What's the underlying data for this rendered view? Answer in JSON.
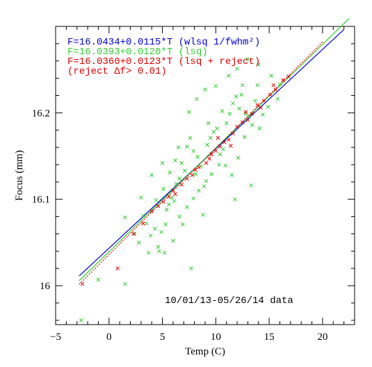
{
  "chart_data": {
    "type": "scatter",
    "xlabel": "Temp (C)",
    "ylabel": "Focus (mm)",
    "xlim": [
      -5,
      23
    ],
    "ylim": [
      15.955,
      16.3
    ],
    "xticks": [
      -5,
      0,
      5,
      10,
      15,
      20
    ],
    "yticks": [
      16,
      16.1,
      16.2
    ],
    "ytick_labels": [
      "16",
      "16.1",
      "16.2"
    ],
    "grid": false,
    "legend": {
      "placement": "top-left",
      "entries": [
        {
          "text": "F=16.0434+0.0115*T (wlsq 1/fwhm²)",
          "color": "#0000cc"
        },
        {
          "text": "F=16.0393+0.0120*T (lsq)",
          "color": "#33cc33"
        },
        {
          "text": "F=16.0360+0.0123*T (lsq + reject)",
          "color": "#dd0000"
        },
        {
          "text": "(reject Δf> 0.01)",
          "color": "#dd0000"
        }
      ]
    },
    "annotation": "10/01/13-05/26/14 data",
    "fits": [
      {
        "intercept": 16.0434,
        "slope": 0.0115,
        "color": "#0000cc",
        "style": "solid",
        "x": [
          -2.8,
          22
        ]
      },
      {
        "intercept": 16.0393,
        "slope": 0.012,
        "color": "#33cc33",
        "style": "solid",
        "x": [
          -2.8,
          22.5
        ]
      },
      {
        "intercept": 16.036,
        "slope": 0.0123,
        "color": "#dd0000",
        "style": "dotted",
        "x": [
          -2.8,
          20
        ]
      }
    ],
    "series": [
      {
        "color": "#33cc33",
        "marker": "x",
        "points": [
          [
            -2.6,
            15.96
          ],
          [
            1.5,
            16.002
          ],
          [
            -1.0,
            16.007
          ],
          [
            1.5,
            16.079
          ],
          [
            2.4,
            16.06
          ],
          [
            3.2,
            16.081
          ],
          [
            3.5,
            16.072
          ],
          [
            3.9,
            16.058
          ],
          [
            4.3,
            16.066
          ],
          [
            4.6,
            16.045
          ],
          [
            4.9,
            16.062
          ],
          [
            5.1,
            16.112
          ],
          [
            5.4,
            16.088
          ],
          [
            5.6,
            16.094
          ],
          [
            5.9,
            16.102
          ],
          [
            6.1,
            16.098
          ],
          [
            6.0,
            16.052
          ],
          [
            6.3,
            16.118
          ],
          [
            6.6,
            16.124
          ],
          [
            6.8,
            16.142
          ],
          [
            7.1,
            16.133
          ],
          [
            7.3,
            16.161
          ],
          [
            7.6,
            16.171
          ],
          [
            7.9,
            16.156
          ],
          [
            8.1,
            16.129
          ],
          [
            8.3,
            16.149
          ],
          [
            8.6,
            16.138
          ],
          [
            8.9,
            16.115
          ],
          [
            9.2,
            16.163
          ],
          [
            9.5,
            16.171
          ],
          [
            9.8,
            16.178
          ],
          [
            10.1,
            16.182
          ],
          [
            10.4,
            16.152
          ],
          [
            10.7,
            16.158
          ],
          [
            11.0,
            16.188
          ],
          [
            11.3,
            16.199
          ],
          [
            11.6,
            16.211
          ],
          [
            11.9,
            16.219
          ],
          [
            12.2,
            16.205
          ],
          [
            12.5,
            16.232
          ],
          [
            12.8,
            16.199
          ],
          [
            13.1,
            16.196
          ],
          [
            13.4,
            16.186
          ],
          [
            13.7,
            16.214
          ],
          [
            14.1,
            16.182
          ],
          [
            14.4,
            16.198
          ],
          [
            14.9,
            16.207
          ],
          [
            5.2,
            16.038
          ],
          [
            4.7,
            16.04
          ],
          [
            5.3,
            16.071
          ],
          [
            6.6,
            16.08
          ],
          [
            7.3,
            16.091
          ],
          [
            7.9,
            16.101
          ],
          [
            8.4,
            16.11
          ],
          [
            9.1,
            16.121
          ],
          [
            9.6,
            16.129
          ],
          [
            10.3,
            16.14
          ],
          [
            10.9,
            16.139
          ],
          [
            11.5,
            16.128
          ],
          [
            12.1,
            16.148
          ],
          [
            12.7,
            16.172
          ],
          [
            3.0,
            16.102
          ],
          [
            4.0,
            16.128
          ],
          [
            5.0,
            16.142
          ],
          [
            6.5,
            16.16
          ],
          [
            7.5,
            16.201
          ],
          [
            8.2,
            16.216
          ],
          [
            9.0,
            16.227
          ],
          [
            10.0,
            16.231
          ],
          [
            11.2,
            16.243
          ],
          [
            12.0,
            16.251
          ],
          [
            13.0,
            16.262
          ],
          [
            14.0,
            16.256
          ],
          [
            15.2,
            16.243
          ],
          [
            16.0,
            16.233
          ],
          [
            7.7,
            16.02
          ],
          [
            8.8,
            16.082
          ],
          [
            6.9,
            16.071
          ],
          [
            11.8,
            16.1
          ],
          [
            13.3,
            16.116
          ],
          [
            4.4,
            16.099
          ],
          [
            5.7,
            16.131
          ],
          [
            6.2,
            16.145
          ],
          [
            9.3,
            16.188
          ],
          [
            10.6,
            16.202
          ],
          [
            12.4,
            16.221
          ],
          [
            13.9,
            16.232
          ],
          [
            15.8,
            16.216
          ],
          [
            2.8,
            16.05
          ],
          [
            3.7,
            16.038
          ]
        ]
      },
      {
        "color": "#dd0000",
        "marker": "x",
        "points": [
          [
            -2.5,
            16.002
          ],
          [
            0.8,
            16.02
          ],
          [
            2.3,
            16.06
          ],
          [
            3.2,
            16.072
          ],
          [
            4.0,
            16.086
          ],
          [
            4.6,
            16.092
          ],
          [
            5.1,
            16.097
          ],
          [
            5.6,
            16.103
          ],
          [
            6.2,
            16.106
          ],
          [
            6.8,
            16.117
          ],
          [
            7.3,
            16.124
          ],
          [
            7.8,
            16.128
          ],
          [
            8.4,
            16.137
          ],
          [
            9.1,
            16.142
          ],
          [
            9.6,
            16.152
          ],
          [
            10.0,
            16.156
          ],
          [
            10.4,
            16.161
          ],
          [
            10.8,
            16.166
          ],
          [
            11.2,
            16.169
          ],
          [
            11.6,
            16.176
          ],
          [
            12.0,
            16.184
          ],
          [
            12.5,
            16.189
          ],
          [
            13.0,
            16.192
          ],
          [
            13.4,
            16.199
          ],
          [
            13.9,
            16.209
          ],
          [
            14.5,
            16.214
          ],
          [
            15.1,
            16.221
          ],
          [
            15.6,
            16.227
          ],
          [
            16.3,
            16.238
          ],
          [
            16.8,
            16.242
          ],
          [
            10.2,
            16.171
          ],
          [
            11.4,
            16.162
          ],
          [
            12.8,
            16.201
          ],
          [
            9.4,
            16.147
          ],
          [
            8.1,
            16.134
          ],
          [
            6.0,
            16.11
          ],
          [
            14.2,
            16.206
          ],
          [
            15.4,
            16.232
          ]
        ]
      }
    ]
  }
}
